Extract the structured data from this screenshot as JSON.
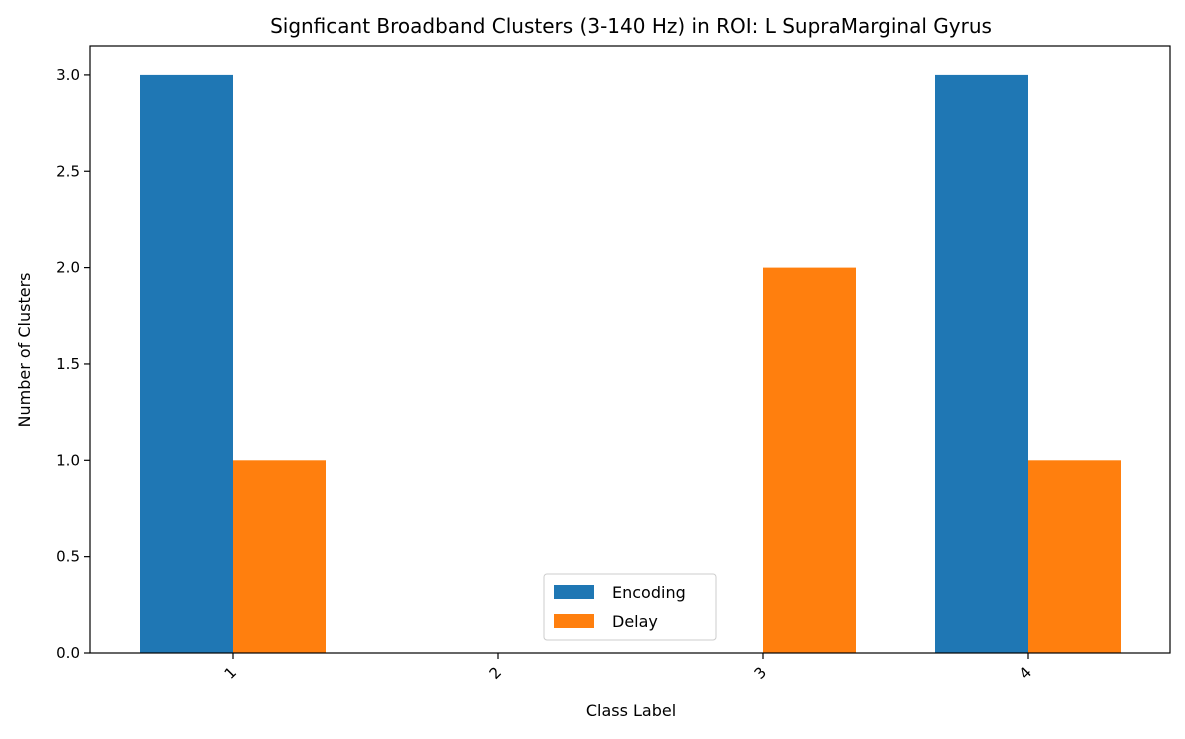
{
  "chart_data": {
    "type": "bar",
    "title": "Signficant Broadband Clusters (3-140 Hz) in ROI: L SupraMarginal Gyrus",
    "xlabel": "Class Label",
    "ylabel": "Number of Clusters",
    "categories": [
      "1",
      "2",
      "3",
      "4"
    ],
    "series": [
      {
        "name": "Encoding",
        "color": "#1f77b4",
        "values": [
          3,
          0,
          0,
          3
        ]
      },
      {
        "name": "Delay",
        "color": "#ff7f0e",
        "values": [
          1,
          0,
          2,
          1
        ]
      }
    ],
    "ylim": [
      0,
      3.15
    ],
    "yticks": [
      "0.0",
      "0.5",
      "1.0",
      "1.5",
      "2.0",
      "2.5",
      "3.0"
    ],
    "ytick_values": [
      0,
      0.5,
      1.0,
      1.5,
      2.0,
      2.5,
      3.0
    ],
    "xtick_rotation": 45,
    "grid": false,
    "legend": "lower-center"
  }
}
